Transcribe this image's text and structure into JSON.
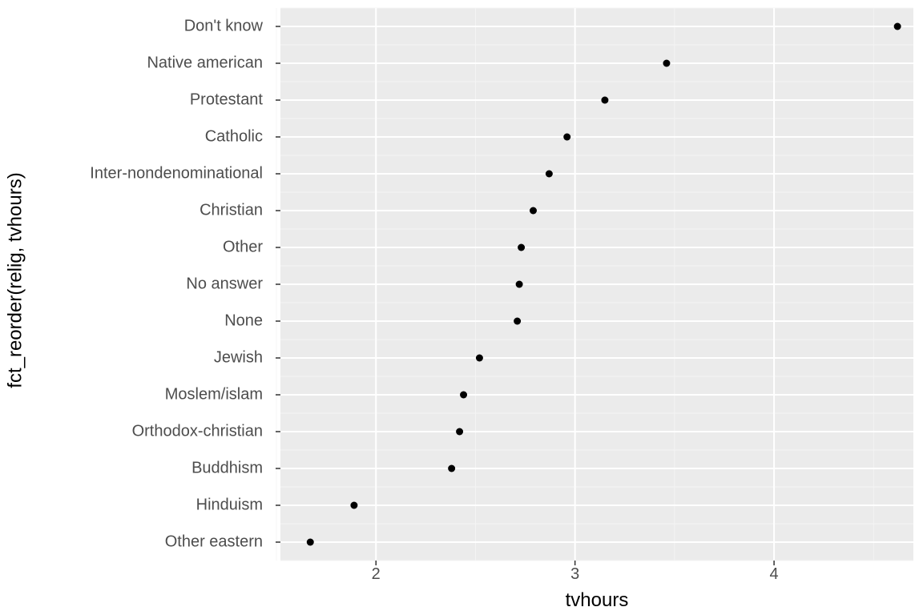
{
  "chart": {
    "type": "scatter",
    "ylabel": "fct_reorder(relig, tvhours)",
    "xlabel": "tvhours",
    "panel_background": "#ebebeb",
    "grid_major_color": "#ffffff",
    "grid_minor_color": "#f4f4f4",
    "tick_color": "#333333",
    "point_color": "#000000",
    "point_radius": 4.5,
    "label_fontsize": 20,
    "title_fontsize": 24,
    "tick_label_color": "#4d4d4d",
    "xlim": [
      1.52,
      4.7
    ],
    "x_major_ticks": [
      2,
      3,
      4
    ],
    "x_minor_ticks": [
      1.5,
      2.5,
      3.5,
      4.5
    ],
    "categories": [
      "Don't know",
      "Native american",
      "Protestant",
      "Catholic",
      "Inter-nondenominational",
      "Christian",
      "Other",
      "No answer",
      "None",
      "Jewish",
      "Moslem/islam",
      "Orthodox-christian",
      "Buddhism",
      "Hinduism",
      "Other eastern"
    ],
    "values": [
      4.62,
      3.46,
      3.15,
      2.96,
      2.87,
      2.79,
      2.73,
      2.72,
      2.71,
      2.52,
      2.44,
      2.42,
      2.38,
      1.89,
      1.67
    ]
  }
}
